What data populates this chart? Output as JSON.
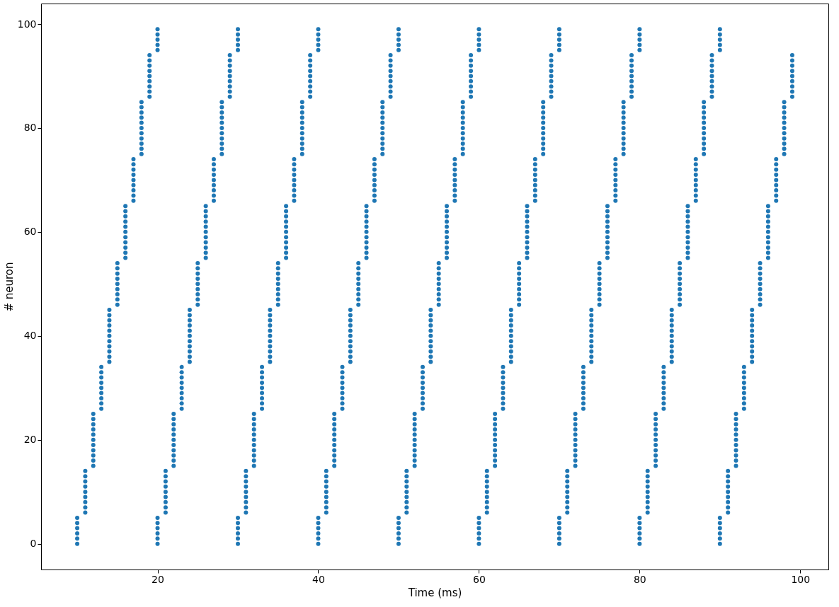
{
  "chart_data": {
    "type": "scatter",
    "xlabel": "Time (ms)",
    "ylabel": "# neuron",
    "xlim": [
      5.5,
      103.5
    ],
    "ylim": [
      -4.95,
      103.95
    ],
    "xticks": [
      20,
      40,
      60,
      80,
      100
    ],
    "yticks": [
      0,
      20,
      40,
      60,
      80,
      100
    ],
    "grid": false,
    "legend": false,
    "marker": "circle",
    "series": [
      {
        "color": "#1f77b4",
        "x": [
          10,
          10,
          10,
          10,
          10,
          10,
          20,
          20,
          20,
          20,
          20,
          20,
          30,
          30,
          30,
          30,
          30,
          30,
          40,
          40,
          40,
          40,
          40,
          40,
          50,
          50,
          50,
          50,
          50,
          50,
          60,
          60,
          60,
          60,
          60,
          60,
          70,
          70,
          70,
          70,
          70,
          70,
          80,
          80,
          80,
          80,
          80,
          80,
          90,
          90,
          90,
          90,
          90,
          90,
          11,
          11,
          11,
          11,
          11,
          11,
          11,
          11,
          11,
          21,
          21,
          21,
          21,
          21,
          21,
          21,
          21,
          21,
          31,
          31,
          31,
          31,
          31,
          31,
          31,
          31,
          31,
          41,
          41,
          41,
          41,
          41,
          41,
          41,
          41,
          41,
          51,
          51,
          51,
          51,
          51,
          51,
          51,
          51,
          51,
          61,
          61,
          61,
          61,
          61,
          61,
          61,
          61,
          61,
          71,
          71,
          71,
          71,
          71,
          71,
          71,
          71,
          71,
          81,
          81,
          81,
          81,
          81,
          81,
          81,
          81,
          81,
          91,
          91,
          91,
          91,
          91,
          91,
          91,
          91,
          91,
          12,
          12,
          12,
          12,
          12,
          12,
          12,
          12,
          12,
          12,
          12,
          22,
          22,
          22,
          22,
          22,
          22,
          22,
          22,
          22,
          22,
          22,
          32,
          32,
          32,
          32,
          32,
          32,
          32,
          32,
          32,
          32,
          32,
          42,
          42,
          42,
          42,
          42,
          42,
          42,
          42,
          42,
          42,
          42,
          52,
          52,
          52,
          52,
          52,
          52,
          52,
          52,
          52,
          52,
          52,
          62,
          62,
          62,
          62,
          62,
          62,
          62,
          62,
          62,
          62,
          62,
          72,
          72,
          72,
          72,
          72,
          72,
          72,
          72,
          72,
          72,
          72,
          82,
          82,
          82,
          82,
          82,
          82,
          82,
          82,
          82,
          82,
          82,
          92,
          92,
          92,
          92,
          92,
          92,
          92,
          92,
          92,
          92,
          92,
          13,
          13,
          13,
          13,
          13,
          13,
          13,
          13,
          13,
          23,
          23,
          23,
          23,
          23,
          23,
          23,
          23,
          23,
          33,
          33,
          33,
          33,
          33,
          33,
          33,
          33,
          33,
          43,
          43,
          43,
          43,
          43,
          43,
          43,
          43,
          43,
          53,
          53,
          53,
          53,
          53,
          53,
          53,
          53,
          53,
          63,
          63,
          63,
          63,
          63,
          63,
          63,
          63,
          63,
          73,
          73,
          73,
          73,
          73,
          73,
          73,
          73,
          73,
          83,
          83,
          83,
          83,
          83,
          83,
          83,
          83,
          83,
          93,
          93,
          93,
          93,
          93,
          93,
          93,
          93,
          93,
          14,
          14,
          14,
          14,
          14,
          14,
          14,
          14,
          14,
          14,
          14,
          24,
          24,
          24,
          24,
          24,
          24,
          24,
          24,
          24,
          24,
          24,
          34,
          34,
          34,
          34,
          34,
          34,
          34,
          34,
          34,
          34,
          34,
          44,
          44,
          44,
          44,
          44,
          44,
          44,
          44,
          44,
          44,
          44,
          54,
          54,
          54,
          54,
          54,
          54,
          54,
          54,
          54,
          54,
          54,
          64,
          64,
          64,
          64,
          64,
          64,
          64,
          64,
          64,
          64,
          64,
          74,
          74,
          74,
          74,
          74,
          74,
          74,
          74,
          74,
          74,
          74,
          84,
          84,
          84,
          84,
          84,
          84,
          84,
          84,
          84,
          84,
          84,
          94,
          94,
          94,
          94,
          94,
          94,
          94,
          94,
          94,
          94,
          94,
          15,
          15,
          15,
          15,
          15,
          15,
          15,
          15,
          15,
          25,
          25,
          25,
          25,
          25,
          25,
          25,
          25,
          25,
          35,
          35,
          35,
          35,
          35,
          35,
          35,
          35,
          35,
          45,
          45,
          45,
          45,
          45,
          45,
          45,
          45,
          45,
          55,
          55,
          55,
          55,
          55,
          55,
          55,
          55,
          55,
          65,
          65,
          65,
          65,
          65,
          65,
          65,
          65,
          65,
          75,
          75,
          75,
          75,
          75,
          75,
          75,
          75,
          75,
          85,
          85,
          85,
          85,
          85,
          85,
          85,
          85,
          85,
          95,
          95,
          95,
          95,
          95,
          95,
          95,
          95,
          95,
          16,
          16,
          16,
          16,
          16,
          16,
          16,
          16,
          16,
          16,
          16,
          26,
          26,
          26,
          26,
          26,
          26,
          26,
          26,
          26,
          26,
          26,
          36,
          36,
          36,
          36,
          36,
          36,
          36,
          36,
          36,
          36,
          36,
          46,
          46,
          46,
          46,
          46,
          46,
          46,
          46,
          46,
          46,
          46,
          56,
          56,
          56,
          56,
          56,
          56,
          56,
          56,
          56,
          56,
          56,
          66,
          66,
          66,
          66,
          66,
          66,
          66,
          66,
          66,
          66,
          66,
          76,
          76,
          76,
          76,
          76,
          76,
          76,
          76,
          76,
          76,
          76,
          86,
          86,
          86,
          86,
          86,
          86,
          86,
          86,
          86,
          86,
          86,
          96,
          96,
          96,
          96,
          96,
          96,
          96,
          96,
          96,
          96,
          96,
          17,
          17,
          17,
          17,
          17,
          17,
          17,
          17,
          17,
          27,
          27,
          27,
          27,
          27,
          27,
          27,
          27,
          27,
          37,
          37,
          37,
          37,
          37,
          37,
          37,
          37,
          37,
          47,
          47,
          47,
          47,
          47,
          47,
          47,
          47,
          47,
          57,
          57,
          57,
          57,
          57,
          57,
          57,
          57,
          57,
          67,
          67,
          67,
          67,
          67,
          67,
          67,
          67,
          67,
          77,
          77,
          77,
          77,
          77,
          77,
          77,
          77,
          77,
          87,
          87,
          87,
          87,
          87,
          87,
          87,
          87,
          87,
          97,
          97,
          97,
          97,
          97,
          97,
          97,
          97,
          97,
          18,
          18,
          18,
          18,
          18,
          18,
          18,
          18,
          18,
          18,
          18,
          28,
          28,
          28,
          28,
          28,
          28,
          28,
          28,
          28,
          28,
          28,
          38,
          38,
          38,
          38,
          38,
          38,
          38,
          38,
          38,
          38,
          38,
          48,
          48,
          48,
          48,
          48,
          48,
          48,
          48,
          48,
          48,
          48,
          58,
          58,
          58,
          58,
          58,
          58,
          58,
          58,
          58,
          58,
          58,
          68,
          68,
          68,
          68,
          68,
          68,
          68,
          68,
          68,
          68,
          68,
          78,
          78,
          78,
          78,
          78,
          78,
          78,
          78,
          78,
          78,
          78,
          88,
          88,
          88,
          88,
          88,
          88,
          88,
          88,
          88,
          88,
          88,
          98,
          98,
          98,
          98,
          98,
          98,
          98,
          98,
          98,
          98,
          98,
          19,
          19,
          19,
          19,
          19,
          19,
          19,
          19,
          19,
          29,
          29,
          29,
          29,
          29,
          29,
          29,
          29,
          29,
          39,
          39,
          39,
          39,
          39,
          39,
          39,
          39,
          39,
          49,
          49,
          49,
          49,
          49,
          49,
          49,
          49,
          49,
          59,
          59,
          59,
          59,
          59,
          59,
          59,
          59,
          59,
          69,
          69,
          69,
          69,
          69,
          69,
          69,
          69,
          69,
          79,
          79,
          79,
          79,
          79,
          79,
          79,
          79,
          79,
          89,
          89,
          89,
          89,
          89,
          89,
          89,
          89,
          89,
          99,
          99,
          99,
          99,
          99,
          99,
          99,
          99,
          99,
          20,
          20,
          20,
          20,
          20,
          30,
          30,
          30,
          30,
          30,
          40,
          40,
          40,
          40,
          40,
          50,
          50,
          50,
          50,
          50,
          60,
          60,
          60,
          60,
          60,
          70,
          70,
          70,
          70,
          70,
          80,
          80,
          80,
          80,
          80,
          90,
          90,
          90,
          90,
          90
        ],
        "values": [
          0,
          1,
          2,
          3,
          4,
          5,
          0,
          1,
          2,
          3,
          4,
          5,
          0,
          1,
          2,
          3,
          4,
          5,
          0,
          1,
          2,
          3,
          4,
          5,
          0,
          1,
          2,
          3,
          4,
          5,
          0,
          1,
          2,
          3,
          4,
          5,
          0,
          1,
          2,
          3,
          4,
          5,
          0,
          1,
          2,
          3,
          4,
          5,
          0,
          1,
          2,
          3,
          4,
          5,
          6,
          7,
          8,
          9,
          10,
          11,
          12,
          13,
          14,
          6,
          7,
          8,
          9,
          10,
          11,
          12,
          13,
          14,
          6,
          7,
          8,
          9,
          10,
          11,
          12,
          13,
          14,
          6,
          7,
          8,
          9,
          10,
          11,
          12,
          13,
          14,
          6,
          7,
          8,
          9,
          10,
          11,
          12,
          13,
          14,
          6,
          7,
          8,
          9,
          10,
          11,
          12,
          13,
          14,
          6,
          7,
          8,
          9,
          10,
          11,
          12,
          13,
          14,
          6,
          7,
          8,
          9,
          10,
          11,
          12,
          13,
          14,
          6,
          7,
          8,
          9,
          10,
          11,
          12,
          13,
          14,
          15,
          16,
          17,
          18,
          19,
          20,
          21,
          22,
          23,
          24,
          25,
          15,
          16,
          17,
          18,
          19,
          20,
          21,
          22,
          23,
          24,
          25,
          15,
          16,
          17,
          18,
          19,
          20,
          21,
          22,
          23,
          24,
          25,
          15,
          16,
          17,
          18,
          19,
          20,
          21,
          22,
          23,
          24,
          25,
          15,
          16,
          17,
          18,
          19,
          20,
          21,
          22,
          23,
          24,
          25,
          15,
          16,
          17,
          18,
          19,
          20,
          21,
          22,
          23,
          24,
          25,
          15,
          16,
          17,
          18,
          19,
          20,
          21,
          22,
          23,
          24,
          25,
          15,
          16,
          17,
          18,
          19,
          20,
          21,
          22,
          23,
          24,
          25,
          15,
          16,
          17,
          18,
          19,
          20,
          21,
          22,
          23,
          24,
          25,
          26,
          27,
          28,
          29,
          30,
          31,
          32,
          33,
          34,
          26,
          27,
          28,
          29,
          30,
          31,
          32,
          33,
          34,
          26,
          27,
          28,
          29,
          30,
          31,
          32,
          33,
          34,
          26,
          27,
          28,
          29,
          30,
          31,
          32,
          33,
          34,
          26,
          27,
          28,
          29,
          30,
          31,
          32,
          33,
          34,
          26,
          27,
          28,
          29,
          30,
          31,
          32,
          33,
          34,
          26,
          27,
          28,
          29,
          30,
          31,
          32,
          33,
          34,
          26,
          27,
          28,
          29,
          30,
          31,
          32,
          33,
          34,
          26,
          27,
          28,
          29,
          30,
          31,
          32,
          33,
          34,
          35,
          36,
          37,
          38,
          39,
          40,
          41,
          42,
          43,
          44,
          45,
          35,
          36,
          37,
          38,
          39,
          40,
          41,
          42,
          43,
          44,
          45,
          35,
          36,
          37,
          38,
          39,
          40,
          41,
          42,
          43,
          44,
          45,
          35,
          36,
          37,
          38,
          39,
          40,
          41,
          42,
          43,
          44,
          45,
          35,
          36,
          37,
          38,
          39,
          40,
          41,
          42,
          43,
          44,
          45,
          35,
          36,
          37,
          38,
          39,
          40,
          41,
          42,
          43,
          44,
          45,
          35,
          36,
          37,
          38,
          39,
          40,
          41,
          42,
          43,
          44,
          45,
          35,
          36,
          37,
          38,
          39,
          40,
          41,
          42,
          43,
          44,
          45,
          35,
          36,
          37,
          38,
          39,
          40,
          41,
          42,
          43,
          44,
          45,
          46,
          47,
          48,
          49,
          50,
          51,
          52,
          53,
          54,
          46,
          47,
          48,
          49,
          50,
          51,
          52,
          53,
          54,
          46,
          47,
          48,
          49,
          50,
          51,
          52,
          53,
          54,
          46,
          47,
          48,
          49,
          50,
          51,
          52,
          53,
          54,
          46,
          47,
          48,
          49,
          50,
          51,
          52,
          53,
          54,
          46,
          47,
          48,
          49,
          50,
          51,
          52,
          53,
          54,
          46,
          47,
          48,
          49,
          50,
          51,
          52,
          53,
          54,
          46,
          47,
          48,
          49,
          50,
          51,
          52,
          53,
          54,
          46,
          47,
          48,
          49,
          50,
          51,
          52,
          53,
          54,
          55,
          56,
          57,
          58,
          59,
          60,
          61,
          62,
          63,
          64,
          65,
          55,
          56,
          57,
          58,
          59,
          60,
          61,
          62,
          63,
          64,
          65,
          55,
          56,
          57,
          58,
          59,
          60,
          61,
          62,
          63,
          64,
          65,
          55,
          56,
          57,
          58,
          59,
          60,
          61,
          62,
          63,
          64,
          65,
          55,
          56,
          57,
          58,
          59,
          60,
          61,
          62,
          63,
          64,
          65,
          55,
          56,
          57,
          58,
          59,
          60,
          61,
          62,
          63,
          64,
          65,
          55,
          56,
          57,
          58,
          59,
          60,
          61,
          62,
          63,
          64,
          65,
          55,
          56,
          57,
          58,
          59,
          60,
          61,
          62,
          63,
          64,
          65,
          55,
          56,
          57,
          58,
          59,
          60,
          61,
          62,
          63,
          64,
          65,
          66,
          67,
          68,
          69,
          70,
          71,
          72,
          73,
          74,
          66,
          67,
          68,
          69,
          70,
          71,
          72,
          73,
          74,
          66,
          67,
          68,
          69,
          70,
          71,
          72,
          73,
          74,
          66,
          67,
          68,
          69,
          70,
          71,
          72,
          73,
          74,
          66,
          67,
          68,
          69,
          70,
          71,
          72,
          73,
          74,
          66,
          67,
          68,
          69,
          70,
          71,
          72,
          73,
          74,
          66,
          67,
          68,
          69,
          70,
          71,
          72,
          73,
          74,
          66,
          67,
          68,
          69,
          70,
          71,
          72,
          73,
          74,
          66,
          67,
          68,
          69,
          70,
          71,
          72,
          73,
          74,
          75,
          76,
          77,
          78,
          79,
          80,
          81,
          82,
          83,
          84,
          85,
          75,
          76,
          77,
          78,
          79,
          80,
          81,
          82,
          83,
          84,
          85,
          75,
          76,
          77,
          78,
          79,
          80,
          81,
          82,
          83,
          84,
          85,
          75,
          76,
          77,
          78,
          79,
          80,
          81,
          82,
          83,
          84,
          85,
          75,
          76,
          77,
          78,
          79,
          80,
          81,
          82,
          83,
          84,
          85,
          75,
          76,
          77,
          78,
          79,
          80,
          81,
          82,
          83,
          84,
          85,
          75,
          76,
          77,
          78,
          79,
          80,
          81,
          82,
          83,
          84,
          85,
          75,
          76,
          77,
          78,
          79,
          80,
          81,
          82,
          83,
          84,
          85,
          75,
          76,
          77,
          78,
          79,
          80,
          81,
          82,
          83,
          84,
          85,
          86,
          87,
          88,
          89,
          90,
          91,
          92,
          93,
          94,
          86,
          87,
          88,
          89,
          90,
          91,
          92,
          93,
          94,
          86,
          87,
          88,
          89,
          90,
          91,
          92,
          93,
          94,
          86,
          87,
          88,
          89,
          90,
          91,
          92,
          93,
          94,
          86,
          87,
          88,
          89,
          90,
          91,
          92,
          93,
          94,
          86,
          87,
          88,
          89,
          90,
          91,
          92,
          93,
          94,
          86,
          87,
          88,
          89,
          90,
          91,
          92,
          93,
          94,
          86,
          87,
          88,
          89,
          90,
          91,
          92,
          93,
          94,
          86,
          87,
          88,
          89,
          90,
          91,
          92,
          93,
          94,
          95,
          96,
          97,
          98,
          99,
          95,
          96,
          97,
          98,
          99,
          95,
          96,
          97,
          98,
          99,
          95,
          96,
          97,
          98,
          99,
          95,
          96,
          97,
          98,
          99,
          95,
          96,
          97,
          98,
          99,
          95,
          96,
          97,
          98,
          99,
          95,
          96,
          97,
          98,
          99
        ]
      }
    ]
  }
}
